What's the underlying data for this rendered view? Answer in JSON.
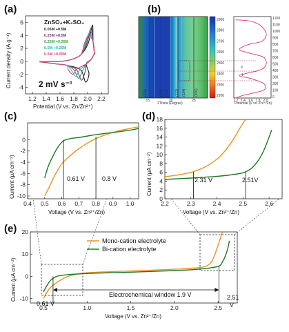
{
  "panel_labels": {
    "a": "(a)",
    "b": "(b)",
    "c": "(c)",
    "d": "(d)",
    "e": "(e)"
  },
  "panel_a": {
    "ylabel": "Current density (A g⁻¹)",
    "xlabel_main": "Potential (V ",
    "xlabel_vs": "vs.",
    "xlabel_tail": " Zn/Zn²⁺)",
    "xticks": [
      "1.2",
      "1.4",
      "1.6",
      "1.8",
      "2.0",
      "2.2"
    ],
    "yticks": [
      "6",
      "4",
      "2",
      "0",
      "-2",
      "-4"
    ],
    "legend_title": "ZnSO₄+K₂SO₄",
    "legend": [
      {
        "label": "0.05M +0.5M",
        "color": "#1a1a1a"
      },
      {
        "label": "0.25M +0.5M",
        "color": "#7b2c8c"
      },
      {
        "label": "0.25M +0.25M",
        "color": "#3aa33a"
      },
      {
        "label": "0.5M +0.25M",
        "color": "#2bb3b3"
      },
      {
        "label": "0.5M +0.05M",
        "color": "#e83a7a"
      }
    ],
    "scan_rate": "2 mV s⁻¹"
  },
  "panel_b": {
    "xlabel": "2Theta (Degree)",
    "map_xticks": [
      "15",
      "20",
      "25"
    ],
    "peaks": [
      "(111)",
      "(110)",
      "(112)",
      "(113)",
      "(114)",
      "(300)"
    ],
    "colorbar": [
      "2900",
      "2800",
      "2700",
      "2600",
      "2500",
      "2400",
      "2300",
      "2200"
    ],
    "time_ticks": [
      "1200",
      "1100",
      "1000",
      "900",
      "800",
      "700",
      "600",
      "500",
      "400",
      "300",
      "200",
      "100",
      "0"
    ],
    "cv_xlabel": "Potential (V vs. Zn²⁺/Zn)",
    "cv_xticks": [
      "1.2",
      "1.4",
      "1.6",
      "1.8",
      "2.0"
    ],
    "annotations": [
      "II",
      "I"
    ]
  },
  "panel_c": {
    "ylabel": "Current (μA cm⁻²)",
    "xlabel": "Voltage (V vs. Zn²⁺/Zn)",
    "xticks": [
      "0.4",
      "0.5",
      "0.6",
      "0.7",
      "0.8",
      "0.9",
      "1.0"
    ],
    "yticks": [
      "0",
      "-2",
      "-4",
      "-6",
      "-8",
      "-10"
    ],
    "annotations": [
      "0.61 V",
      "0.8 V"
    ]
  },
  "panel_d": {
    "ylabel": "Current (μA cm⁻²)",
    "xlabel": "Voltage (V vs. Zn²⁺/Zn)",
    "xticks": [
      "2.2",
      "2.3",
      "2.4",
      "2.5",
      "2.6"
    ],
    "yticks": [
      "18",
      "16",
      "14",
      "12",
      "10",
      "8",
      "6",
      "4",
      "2",
      "0"
    ],
    "annotations": [
      "2.31 V",
      "2.51V"
    ]
  },
  "panel_e": {
    "ylabel": "Current (μA cm⁻²)",
    "xlabel": "Voltage (V vs. Zn²⁺/Zn)",
    "xticks": [
      "0.5",
      "1.0",
      "1.5",
      "2.0",
      "2.5"
    ],
    "yticks": [
      "20",
      "10",
      "0",
      "-10"
    ],
    "legend": [
      {
        "label": "Mono-cation electrolyte",
        "color": "#f0901e"
      },
      {
        "label": "Bi-cation  electrolyte",
        "color": "#1e7a1e"
      }
    ],
    "window_label": "Electrochemical window 1.9 V",
    "left_mark": "0.61 V",
    "right_mark_num": "2.51",
    "right_mark_unit": "V"
  },
  "chart_data": [
    {
      "type": "line",
      "panel": "c",
      "xlabel": "Voltage (V vs. Zn²⁺/Zn)",
      "ylabel": "Current (μA cm⁻²)",
      "xlim": [
        0.4,
        1.05
      ],
      "ylim": [
        -10.5,
        3
      ],
      "series": [
        {
          "color": "#f0901e",
          "x": [
            0.5,
            0.53,
            0.56,
            0.6,
            0.65,
            0.7,
            0.75,
            0.8,
            0.85,
            0.9,
            0.95,
            1.0,
            1.05
          ],
          "y": [
            -10,
            -8.2,
            -6.3,
            -4.3,
            -2.8,
            -1.6,
            -0.6,
            0.2,
            0.8,
            1.3,
            1.7,
            2.0,
            2.3
          ]
        },
        {
          "color": "#1e7a1e",
          "x": [
            0.5,
            0.52,
            0.55,
            0.58,
            0.61,
            0.65,
            0.7,
            0.8,
            0.9,
            1.0,
            1.05
          ],
          "y": [
            -6.8,
            -4.8,
            -2.8,
            -1.2,
            -0.2,
            0.2,
            0.4,
            0.9,
            1.3,
            1.7,
            2.0
          ]
        }
      ]
    },
    {
      "type": "line",
      "panel": "d",
      "xlabel": "Voltage (V vs. Zn²⁺/Zn)",
      "ylabel": "Current (μA cm⁻²)",
      "xlim": [
        2.2,
        2.65
      ],
      "ylim": [
        0,
        18
      ],
      "series": [
        {
          "color": "#f0901e",
          "x": [
            2.2,
            2.25,
            2.3,
            2.35,
            2.4,
            2.43,
            2.46,
            2.49,
            2.51
          ],
          "y": [
            5.0,
            5.4,
            6.0,
            7.1,
            9.0,
            10.8,
            13.2,
            16.2,
            18.0
          ]
        },
        {
          "color": "#1e7a1e",
          "x": [
            2.2,
            2.3,
            2.4,
            2.45,
            2.5,
            2.53,
            2.56,
            2.58,
            2.6,
            2.61
          ],
          "y": [
            4.4,
            4.7,
            5.1,
            5.4,
            5.9,
            6.8,
            8.8,
            11.0,
            14.0,
            15.6
          ]
        }
      ]
    },
    {
      "type": "line",
      "panel": "e",
      "xlabel": "Voltage (V vs. Zn²⁺/Zn)",
      "ylabel": "Current (μA cm⁻²)",
      "xlim": [
        0.35,
        2.72
      ],
      "ylim": [
        -12,
        20
      ],
      "series": [
        {
          "name": "Mono-cation electrolyte",
          "color": "#f0901e",
          "x": [
            0.5,
            0.55,
            0.6,
            0.7,
            0.8,
            1.0,
            1.5,
            2.0,
            2.3,
            2.4,
            2.45,
            2.5,
            2.55
          ],
          "y": [
            -10,
            -6.5,
            -4.3,
            -1.6,
            0.2,
            1.6,
            2.4,
            3.2,
            4.0,
            5.5,
            8.5,
            14,
            20
          ]
        },
        {
          "name": "Bi-cation  electrolyte",
          "color": "#1e7a1e",
          "x": [
            0.5,
            0.55,
            0.6,
            0.7,
            1.0,
            1.5,
            2.0,
            2.3,
            2.5,
            2.55,
            2.6,
            2.63
          ],
          "y": [
            -7,
            -3.5,
            -1.2,
            0.4,
            1.3,
            1.9,
            2.6,
            3.3,
            4.5,
            6.5,
            11,
            16
          ]
        }
      ]
    }
  ]
}
